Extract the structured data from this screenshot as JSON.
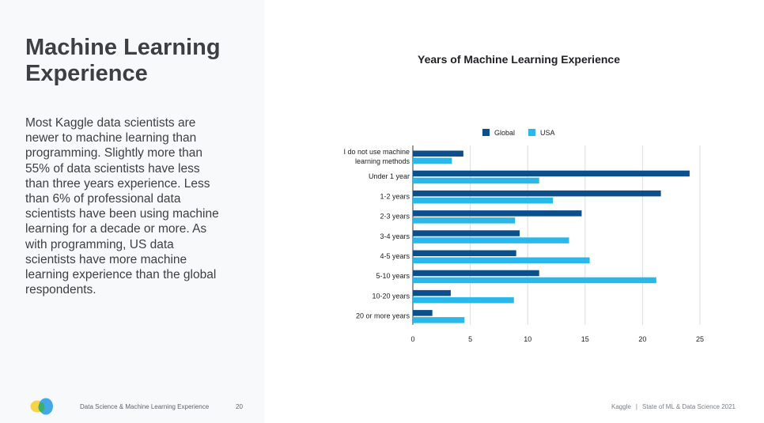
{
  "page": {
    "title": "Machine Learning Experience",
    "body": "Most Kaggle data scientists are newer to machine learning than programming. Slightly more than 55% of data scientists have less than three years experience. Less than 6% of professional data scientists have been using machine learning for a decade or more. As with programming, US data scientists have more machine learning experience than the global respondents."
  },
  "footer": {
    "left_text": "Data Science & Machine Learning Experience",
    "page_number": "20",
    "brand": "Kaggle",
    "separator": "|",
    "report": "State of ML & Data Science 2021"
  },
  "colors": {
    "global": "#0b4f8c",
    "usa": "#2ab7ea",
    "grid": "#dadce0"
  },
  "chart_data": {
    "type": "bar",
    "orientation": "horizontal",
    "title": "Years of Machine Learning Experience",
    "legend_position": "top",
    "categories": [
      [
        "I do not use machine",
        "learning methods"
      ],
      [
        "Under 1 year"
      ],
      [
        "1-2 years"
      ],
      [
        "2-3 years"
      ],
      [
        "3-4 years"
      ],
      [
        "4-5 years"
      ],
      [
        "5-10 years"
      ],
      [
        "10-20 years"
      ],
      [
        "20 or more years"
      ]
    ],
    "series": [
      {
        "name": "Global",
        "values": [
          4.4,
          24.1,
          21.6,
          14.7,
          9.3,
          9.0,
          11.0,
          3.3,
          1.7
        ]
      },
      {
        "name": "USA",
        "values": [
          3.4,
          11.0,
          12.2,
          8.9,
          13.6,
          15.4,
          21.2,
          8.8,
          4.5
        ]
      }
    ],
    "xlim": [
      0,
      25
    ],
    "xticks": [
      0,
      5,
      10,
      15,
      20,
      25
    ],
    "grid": true
  }
}
